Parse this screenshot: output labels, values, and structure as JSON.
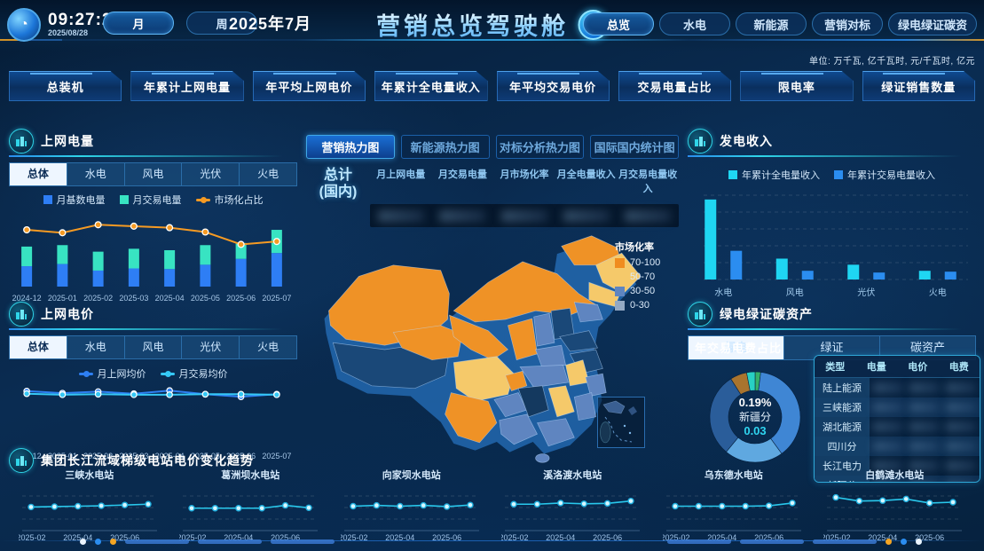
{
  "header": {
    "time": "09:27:22",
    "date": "2025/08/28",
    "period_tabs": [
      "月",
      "周"
    ],
    "active_period": "月",
    "current_month": "2025年7月",
    "title": "营销总览驾驶舱",
    "ai_badge": "AI",
    "nav_tabs": [
      "总览",
      "水电",
      "新能源",
      "营销对标",
      "绿电绿证碳资"
    ],
    "active_nav": "总览",
    "units_note": "单位: 万千瓦, 亿千瓦时, 元/千瓦时, 亿元"
  },
  "kpis": [
    "总装机",
    "年累计上网电量",
    "年平均上网电价",
    "年累计全电量收入",
    "年平均交易电价",
    "交易电量占比",
    "限电率",
    "绿证销售数量"
  ],
  "grid_power": {
    "title": "上网电量",
    "tabs": [
      "总体",
      "水电",
      "风电",
      "光伏",
      "火电"
    ],
    "active_tab": "总体",
    "legend": [
      "月基数电量",
      "月交易电量",
      "市场化占比"
    ],
    "chart_data": {
      "type": "bar",
      "subtype": "stacked-bar-with-line",
      "categories": [
        "2024-12",
        "2025-01",
        "2025-02",
        "2025-03",
        "2025-04",
        "2025-05",
        "2025-06",
        "2025-07"
      ],
      "series": [
        {
          "name": "月基数电量",
          "kind": "bar",
          "color": "#2e7ef5",
          "values": [
            28,
            31,
            22,
            25,
            24,
            30,
            38,
            46
          ]
        },
        {
          "name": "月交易电量",
          "kind": "bar",
          "color": "#38e3c2",
          "values": [
            27,
            26,
            26,
            27,
            26,
            27,
            22,
            32
          ]
        },
        {
          "name": "市场化占比",
          "kind": "line",
          "color": "#f59a23",
          "values": [
            78,
            74,
            85,
            83,
            81,
            75,
            58,
            62
          ]
        }
      ],
      "ylim": [
        0,
        100
      ]
    }
  },
  "grid_price": {
    "title": "上网电价",
    "tabs": [
      "总体",
      "水电",
      "风电",
      "光伏",
      "火电"
    ],
    "active_tab": "总体",
    "legend": [
      "月上网均价",
      "月交易均价"
    ],
    "chart_data": {
      "type": "line",
      "categories": [
        "2024-12",
        "2025-01",
        "2025-02",
        "2025-03",
        "2025-04",
        "2025-05",
        "2025-06",
        "2025-07"
      ],
      "series": [
        {
          "name": "月上网均价",
          "color": "#2e7ff2",
          "values": [
            90,
            86,
            89,
            85,
            91,
            84,
            79,
            84
          ]
        },
        {
          "name": "月交易均价",
          "color": "#35c8f5",
          "values": [
            85,
            83,
            84,
            83,
            83,
            84,
            84,
            83
          ]
        }
      ],
      "ylim": [
        0,
        100
      ]
    }
  },
  "heatmap": {
    "tabs": [
      "营销热力图",
      "新能源热力图",
      "对标分析热力图",
      "国际国内统计图"
    ],
    "active_tab": "营销热力图",
    "summary_label_1": "总计",
    "summary_label_2": "(国内)",
    "columns": [
      "月上网电量",
      "月交易电量",
      "月市场化率",
      "月全电量收入",
      "月交易电量收入"
    ],
    "values_blurred": true,
    "legend": {
      "title": "市场化率",
      "items": [
        {
          "label": "70-100",
          "color": "#f08c1e"
        },
        {
          "label": "50-70",
          "color": "#f5c96a"
        },
        {
          "label": "30-50",
          "color": "#5f85c0"
        },
        {
          "label": "0-30",
          "color": "#93a9c4"
        }
      ]
    }
  },
  "revenue": {
    "title": "发电收入",
    "legend": [
      "年累计全电量收入",
      "年累计交易电量收入"
    ],
    "chart_data": {
      "type": "bar",
      "categories": [
        "水电",
        "风电",
        "光伏",
        "火电"
      ],
      "series": [
        {
          "name": "年累计全电量收入",
          "color": "#1fd6f2",
          "values": [
            92,
            24,
            17,
            10
          ]
        },
        {
          "name": "年累计交易电量收入",
          "color": "#2b8df0",
          "values": [
            33,
            10,
            8,
            9
          ]
        }
      ],
      "ylim": [
        0,
        100
      ],
      "grid": "dashed-horizontal"
    }
  },
  "green_assets": {
    "title": "绿电绿证碳资产",
    "tabs": [
      "绿电",
      "绿证",
      "碳资产"
    ],
    "active_tab": "绿电",
    "donut": {
      "title": "年交易电费占比",
      "center": {
        "percent": "0.19%",
        "name": "新疆分",
        "value": "0.03"
      },
      "chart_data": {
        "type": "pie",
        "slices": [
          {
            "color": "#35b06a",
            "value": 2
          },
          {
            "color": "#3f86d4",
            "value": 38
          },
          {
            "color": "#5fa8e0",
            "value": 21
          },
          {
            "color": "#2a5d9a",
            "value": 30
          },
          {
            "color": "#a9742e",
            "value": 6
          },
          {
            "color": "#28d0c4",
            "value": 3
          }
        ]
      }
    },
    "table": {
      "headers": [
        "类型",
        "电量",
        "电价",
        "电费"
      ],
      "rows": [
        "陆上能源",
        "三峡能源",
        "湖北能源",
        "四川分",
        "长江电力",
        "新疆分"
      ],
      "values_blurred": true
    }
  },
  "trend": {
    "title": "集团长江流域梯级电站电价变化趋势",
    "x_labels": [
      "2025-02",
      "2025-04",
      "2025-06"
    ],
    "line_color": "#29c8ec",
    "chart_data": {
      "type": "line",
      "x": [
        "2025-02",
        "2025-03",
        "2025-04",
        "2025-05",
        "2025-06",
        "2025-07"
      ],
      "series": [
        {
          "name": "三峡水电站",
          "values": [
            48,
            49,
            50,
            51,
            53,
            55
          ]
        },
        {
          "name": "葛洲坝水电站",
          "values": [
            45,
            45,
            45,
            45,
            52,
            46
          ]
        },
        {
          "name": "向家坝水电站",
          "values": [
            50,
            52,
            50,
            52,
            49,
            53
          ]
        },
        {
          "name": "溪洛渡水电站",
          "values": [
            55,
            55,
            58,
            56,
            57,
            63
          ]
        },
        {
          "name": "乌东德水电站",
          "values": [
            50,
            50,
            50,
            50,
            51,
            58
          ]
        },
        {
          "name": "白鹤滩水电站",
          "values": [
            72,
            63,
            64,
            68,
            58,
            60
          ]
        }
      ]
    }
  }
}
